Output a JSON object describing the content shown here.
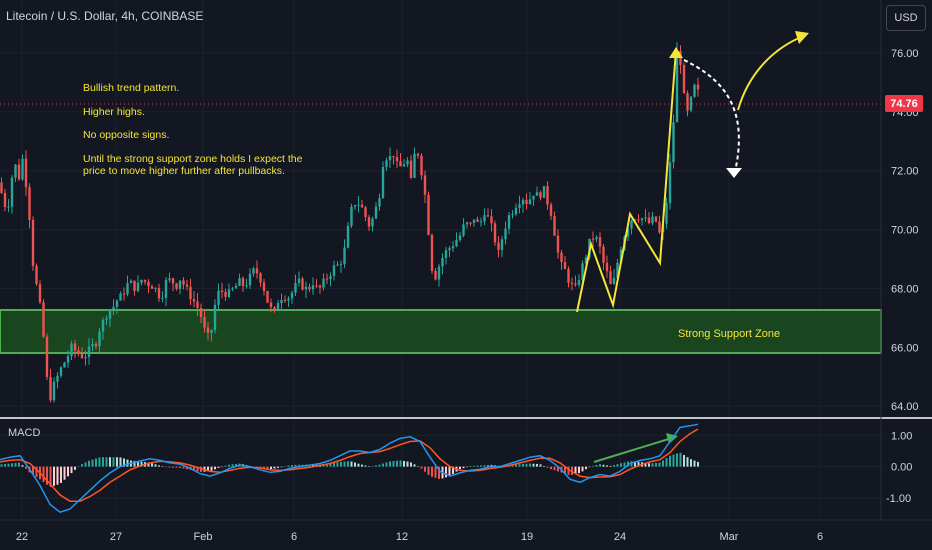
{
  "header": {
    "symbol_title": "Litecoin / U.S. Dollar, 4h, COINBASE",
    "currency_button": "USD"
  },
  "annotations": {
    "notes": [
      "Bullish trend pattern.",
      "Higher highs.",
      "No opposite signs.",
      "Until the strong support zone holds I expect the",
      "price to move higher further after pullbacks."
    ],
    "support_zone_label": "Strong Support Zone"
  },
  "price_badge": "74.76",
  "macd_label": "MACD",
  "colors": {
    "background": "#131722",
    "bull_candle": "#26a69a",
    "bear_candle": "#ef5350",
    "zone_fill": "#1b4d1f",
    "zone_border": "#4caf50",
    "annotation_yellow": "#f5e536",
    "macd_line": "#2196f3",
    "signal_line": "#ff5722",
    "badge": "#f23645"
  },
  "chart_data": [
    {
      "type": "candlestick",
      "title": "Litecoin / U.S. Dollar, 4h, COINBASE",
      "ylim": [
        63.6,
        77.8
      ],
      "y_ticks": [
        "64.00",
        "66.00",
        "68.00",
        "70.00",
        "72.00",
        "74.00",
        "76.00"
      ],
      "x_ticks": [
        "22",
        "27",
        "Feb",
        "6",
        "12",
        "19",
        "24",
        "Mar",
        "6"
      ],
      "last_price": 74.76,
      "support_zone": [
        66.05,
        67.55
      ],
      "price_path": [
        [
          0,
          71.6
        ],
        [
          3,
          70.9
        ],
        [
          8,
          70.8
        ],
        [
          14,
          72.3
        ],
        [
          19,
          71.8
        ],
        [
          22,
          72.5
        ],
        [
          26,
          71.6
        ],
        [
          30,
          70.3
        ],
        [
          34,
          68.4
        ],
        [
          38,
          67.9
        ],
        [
          41,
          67.1
        ],
        [
          44,
          66.2
        ],
        [
          47,
          64.9
        ],
        [
          50,
          64.3
        ],
        [
          55,
          64.8
        ],
        [
          60,
          65.2
        ],
        [
          66,
          65.6
        ],
        [
          72,
          66.0
        ],
        [
          78,
          65.8
        ],
        [
          84,
          65.7
        ],
        [
          90,
          65.9
        ],
        [
          96,
          66.2
        ],
        [
          100,
          66.7
        ],
        [
          104,
          66.9
        ],
        [
          108,
          67.3
        ],
        [
          112,
          67.3
        ],
        [
          117,
          67.6
        ],
        [
          121,
          67.7
        ],
        [
          125,
          68.0
        ],
        [
          129,
          68.2
        ],
        [
          133,
          68.1
        ],
        [
          137,
          68.0
        ],
        [
          141,
          68.3
        ],
        [
          147,
          68.2
        ],
        [
          153,
          68.1
        ],
        [
          157,
          67.9
        ],
        [
          161,
          67.7
        ],
        [
          166,
          68.2
        ],
        [
          171,
          68.3
        ],
        [
          176,
          68.1
        ],
        [
          181,
          68.4
        ],
        [
          185,
          68.0
        ],
        [
          190,
          67.8
        ],
        [
          195,
          67.5
        ],
        [
          200,
          67.2
        ],
        [
          205,
          66.5
        ],
        [
          210,
          66.2
        ],
        [
          214,
          67.3
        ],
        [
          219,
          67.9
        ],
        [
          224,
          67.9
        ],
        [
          229,
          67.8
        ],
        [
          234,
          68.0
        ],
        [
          239,
          68.2
        ],
        [
          244,
          68.1
        ],
        [
          249,
          68.3
        ],
        [
          254,
          68.6
        ],
        [
          259,
          68.5
        ],
        [
          264,
          68.0
        ],
        [
          269,
          67.4
        ],
        [
          274,
          67.1
        ],
        [
          278,
          67.6
        ],
        [
          283,
          67.8
        ],
        [
          288,
          67.7
        ],
        [
          293,
          67.9
        ],
        [
          298,
          68.2
        ],
        [
          303,
          68.1
        ],
        [
          308,
          67.9
        ],
        [
          312,
          68.3
        ],
        [
          316,
          68.0
        ],
        [
          320,
          68.0
        ],
        [
          324,
          68.2
        ],
        [
          329,
          68.5
        ],
        [
          334,
          68.7
        ],
        [
          339,
          68.8
        ],
        [
          344,
          69.2
        ],
        [
          347,
          69.8
        ],
        [
          351,
          70.6
        ],
        [
          356,
          71.0
        ],
        [
          361,
          70.8
        ],
        [
          366,
          70.4
        ],
        [
          370,
          70.1
        ],
        [
          375,
          70.6
        ],
        [
          379,
          71.1
        ],
        [
          384,
          72.6
        ],
        [
          389,
          72.4
        ],
        [
          394,
          72.6
        ],
        [
          398,
          72.0
        ],
        [
          402,
          72.2
        ],
        [
          407,
          72.4
        ],
        [
          411,
          71.6
        ],
        [
          416,
          72.9
        ],
        [
          420,
          72.3
        ],
        [
          424,
          71.5
        ],
        [
          428,
          70.2
        ],
        [
          431,
          68.8
        ],
        [
          436,
          68.4
        ],
        [
          440,
          68.9
        ],
        [
          445,
          69.2
        ],
        [
          450,
          69.4
        ],
        [
          455,
          69.6
        ],
        [
          460,
          69.8
        ],
        [
          465,
          70.2
        ],
        [
          470,
          70.1
        ],
        [
          475,
          70.5
        ],
        [
          479,
          70.0
        ],
        [
          484,
          70.7
        ],
        [
          489,
          70.3
        ],
        [
          494,
          69.8
        ],
        [
          499,
          69.1
        ],
        [
          503,
          69.9
        ],
        [
          508,
          70.4
        ],
        [
          513,
          70.7
        ],
        [
          518,
          71.0
        ],
        [
          523,
          71.1
        ],
        [
          528,
          70.9
        ],
        [
          533,
          71.3
        ],
        [
          538,
          71.1
        ],
        [
          543,
          71.4
        ],
        [
          548,
          70.9
        ],
        [
          552,
          70.5
        ],
        [
          556,
          69.6
        ],
        [
          560,
          68.8
        ],
        [
          565,
          68.6
        ],
        [
          570,
          68.2
        ],
        [
          575,
          67.9
        ],
        [
          579,
          68.4
        ],
        [
          584,
          68.9
        ],
        [
          589,
          69.5
        ],
        [
          594,
          69.8
        ],
        [
          599,
          69.5
        ],
        [
          603,
          68.9
        ],
        [
          608,
          68.4
        ],
        [
          612,
          67.9
        ],
        [
          617,
          68.8
        ],
        [
          622,
          69.6
        ],
        [
          627,
          70.1
        ],
        [
          632,
          70.4
        ],
        [
          637,
          70.5
        ],
        [
          641,
          70.4
        ],
        [
          645,
          70.3
        ],
        [
          650,
          70.2
        ],
        [
          655,
          70.4
        ],
        [
          660,
          69.8
        ],
        [
          664,
          70.2
        ],
        [
          668,
          71.4
        ],
        [
          671,
          72.6
        ],
        [
          674,
          73.9
        ],
        [
          677,
          76.0
        ],
        [
          680,
          75.9
        ],
        [
          683,
          74.9
        ],
        [
          686,
          73.6
        ],
        [
          689,
          74.3
        ],
        [
          692,
          74.4
        ],
        [
          695,
          74.9
        ],
        [
          698,
          74.76
        ]
      ]
    },
    {
      "type": "macd",
      "title": "MACD",
      "ylim": [
        -1.7,
        1.55
      ],
      "y_ticks": [
        "1.00",
        "0.00",
        "-1.00"
      ],
      "macd_line": [
        [
          0,
          0.22
        ],
        [
          10,
          0.3
        ],
        [
          20,
          0.35
        ],
        [
          30,
          -0.1
        ],
        [
          40,
          -0.6
        ],
        [
          50,
          -1.2
        ],
        [
          60,
          -1.45
        ],
        [
          70,
          -1.35
        ],
        [
          80,
          -1.05
        ],
        [
          90,
          -0.75
        ],
        [
          100,
          -0.45
        ],
        [
          110,
          -0.2
        ],
        [
          120,
          0.0
        ],
        [
          130,
          0.1
        ],
        [
          140,
          0.18
        ],
        [
          150,
          0.25
        ],
        [
          160,
          0.2
        ],
        [
          170,
          0.12
        ],
        [
          180,
          0.08
        ],
        [
          190,
          -0.05
        ],
        [
          200,
          -0.22
        ],
        [
          210,
          -0.3
        ],
        [
          220,
          -0.2
        ],
        [
          230,
          -0.05
        ],
        [
          240,
          0.05
        ],
        [
          250,
          0.0
        ],
        [
          260,
          -0.1
        ],
        [
          270,
          -0.18
        ],
        [
          280,
          -0.15
        ],
        [
          290,
          -0.05
        ],
        [
          300,
          0.0
        ],
        [
          310,
          0.05
        ],
        [
          320,
          0.1
        ],
        [
          330,
          0.2
        ],
        [
          340,
          0.35
        ],
        [
          350,
          0.5
        ],
        [
          360,
          0.5
        ],
        [
          370,
          0.45
        ],
        [
          380,
          0.55
        ],
        [
          390,
          0.75
        ],
        [
          400,
          0.9
        ],
        [
          410,
          0.95
        ],
        [
          420,
          0.8
        ],
        [
          430,
          0.3
        ],
        [
          440,
          -0.15
        ],
        [
          450,
          -0.3
        ],
        [
          460,
          -0.2
        ],
        [
          470,
          -0.12
        ],
        [
          480,
          -0.08
        ],
        [
          490,
          0.0
        ],
        [
          500,
          0.0
        ],
        [
          510,
          0.1
        ],
        [
          520,
          0.2
        ],
        [
          530,
          0.3
        ],
        [
          540,
          0.35
        ],
        [
          550,
          0.2
        ],
        [
          560,
          -0.05
        ],
        [
          570,
          -0.4
        ],
        [
          580,
          -0.5
        ],
        [
          590,
          -0.35
        ],
        [
          600,
          -0.25
        ],
        [
          610,
          -0.3
        ],
        [
          620,
          -0.15
        ],
        [
          630,
          0.1
        ],
        [
          640,
          0.2
        ],
        [
          650,
          0.25
        ],
        [
          660,
          0.35
        ],
        [
          670,
          0.8
        ],
        [
          680,
          1.25
        ],
        [
          690,
          1.3
        ],
        [
          698,
          1.35
        ]
      ],
      "signal_line": [
        [
          0,
          0.15
        ],
        [
          10,
          0.2
        ],
        [
          20,
          0.22
        ],
        [
          30,
          0.1
        ],
        [
          40,
          -0.2
        ],
        [
          50,
          -0.55
        ],
        [
          60,
          -0.9
        ],
        [
          70,
          -1.1
        ],
        [
          80,
          -1.1
        ],
        [
          90,
          -0.95
        ],
        [
          100,
          -0.75
        ],
        [
          110,
          -0.5
        ],
        [
          120,
          -0.3
        ],
        [
          130,
          -0.1
        ],
        [
          140,
          0.02
        ],
        [
          150,
          0.12
        ],
        [
          160,
          0.17
        ],
        [
          170,
          0.15
        ],
        [
          180,
          0.12
        ],
        [
          190,
          0.05
        ],
        [
          200,
          -0.05
        ],
        [
          210,
          -0.15
        ],
        [
          220,
          -0.18
        ],
        [
          230,
          -0.12
        ],
        [
          240,
          -0.05
        ],
        [
          250,
          -0.02
        ],
        [
          260,
          -0.04
        ],
        [
          270,
          -0.1
        ],
        [
          280,
          -0.12
        ],
        [
          290,
          -0.1
        ],
        [
          300,
          -0.06
        ],
        [
          310,
          -0.02
        ],
        [
          320,
          0.04
        ],
        [
          330,
          0.1
        ],
        [
          340,
          0.2
        ],
        [
          350,
          0.32
        ],
        [
          360,
          0.42
        ],
        [
          370,
          0.45
        ],
        [
          380,
          0.48
        ],
        [
          390,
          0.58
        ],
        [
          400,
          0.7
        ],
        [
          410,
          0.8
        ],
        [
          420,
          0.82
        ],
        [
          430,
          0.6
        ],
        [
          440,
          0.25
        ],
        [
          450,
          0.0
        ],
        [
          460,
          -0.12
        ],
        [
          470,
          -0.14
        ],
        [
          480,
          -0.12
        ],
        [
          490,
          -0.06
        ],
        [
          500,
          -0.02
        ],
        [
          510,
          0.04
        ],
        [
          520,
          0.12
        ],
        [
          530,
          0.2
        ],
        [
          540,
          0.27
        ],
        [
          550,
          0.27
        ],
        [
          560,
          0.12
        ],
        [
          570,
          -0.12
        ],
        [
          580,
          -0.3
        ],
        [
          590,
          -0.35
        ],
        [
          600,
          -0.33
        ],
        [
          610,
          -0.32
        ],
        [
          620,
          -0.25
        ],
        [
          630,
          -0.08
        ],
        [
          640,
          0.05
        ],
        [
          650,
          0.15
        ],
        [
          660,
          0.22
        ],
        [
          670,
          0.45
        ],
        [
          680,
          0.8
        ],
        [
          690,
          1.05
        ],
        [
          698,
          1.2
        ]
      ]
    }
  ]
}
